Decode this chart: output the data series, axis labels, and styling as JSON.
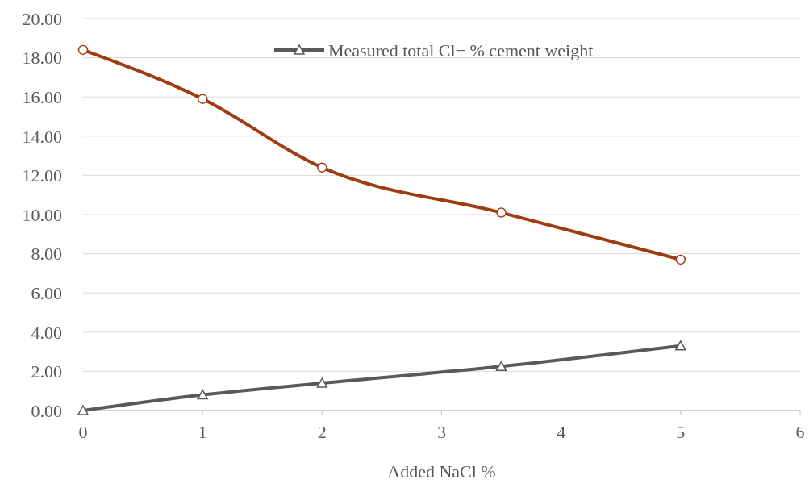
{
  "chart_data": {
    "type": "line",
    "xlabel": "Added NaCl  %",
    "x": [
      0,
      1,
      2,
      3.5,
      5
    ],
    "series": [
      {
        "color": "#9e3d12",
        "values": [
          18.4,
          15.9,
          12.4,
          10.1,
          7.7
        ],
        "marker": "circle"
      },
      {
        "name": "Measured total Cl− % cement weight",
        "color": "#595959",
        "values": [
          0,
          0.8,
          1.4,
          2.25,
          3.3
        ],
        "marker": "triangle"
      }
    ],
    "xlim": [
      0,
      6
    ],
    "xticks": [
      0,
      1,
      2,
      3,
      4,
      5,
      6
    ],
    "ylim": [
      0,
      20
    ],
    "yticks": [
      {
        "value": 0,
        "label": "0.00"
      },
      {
        "value": 2,
        "label": "2.00"
      },
      {
        "value": 4,
        "label": "4.00"
      },
      {
        "value": 6,
        "label": "6.00"
      },
      {
        "value": 8,
        "label": "8.00"
      },
      {
        "value": 10,
        "label": "10.00"
      },
      {
        "value": 12,
        "label": "12.00"
      },
      {
        "value": 14,
        "label": "14.00"
      },
      {
        "value": 16,
        "label": "16.00"
      },
      {
        "value": 18,
        "label": "18.00"
      },
      {
        "value": 20,
        "label": "20.00"
      }
    ],
    "grid": "y",
    "legend": "top",
    "line_style": "solid"
  }
}
